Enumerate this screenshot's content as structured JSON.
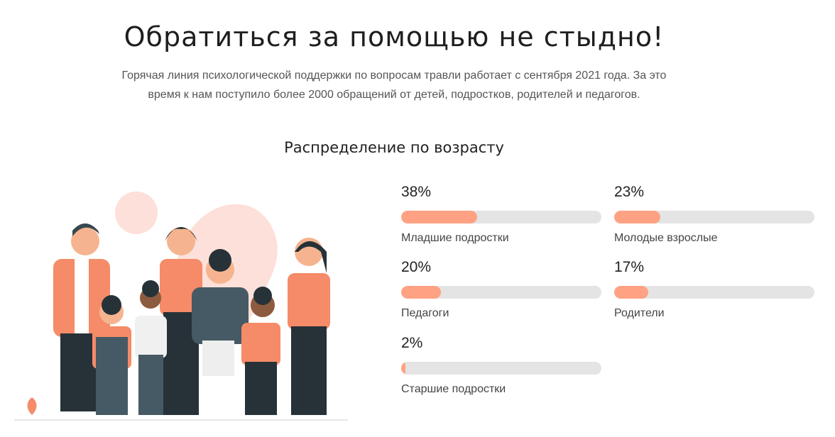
{
  "header": {
    "title": "Обратиться за помощью не стыдно!",
    "lead_line1": "Горячая линия психологической поддержки по вопросам травли работает с сентября 2021 года. За это",
    "lead_line2": "время к нам поступило более 2000 обращений от детей, подростков, родителей и педагогов."
  },
  "section": {
    "title": "Распределение по возрасту"
  },
  "accent_color": "#ffa283",
  "stats": [
    {
      "percent": "38%",
      "value": 38,
      "label": "Младшие подростки"
    },
    {
      "percent": "23%",
      "value": 23,
      "label": "Молодые взрослые"
    },
    {
      "percent": "20%",
      "value": 20,
      "label": "Педагоги"
    },
    {
      "percent": "17%",
      "value": 17,
      "label": "Родители"
    },
    {
      "percent": "2%",
      "value": 2,
      "label": "Старшие подростки"
    }
  ]
}
